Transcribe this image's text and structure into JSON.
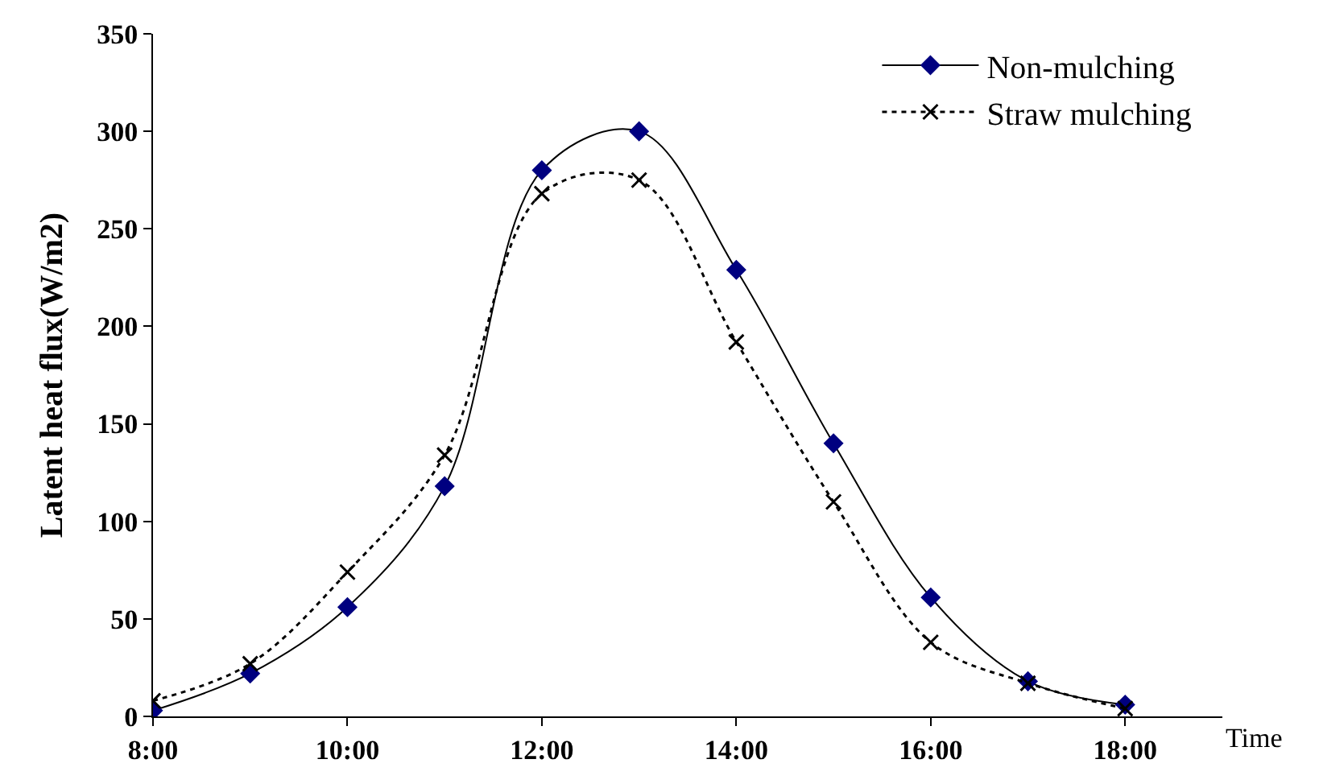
{
  "chart_data": {
    "type": "line",
    "ylabel": "Latent heat flux(W/m2)",
    "xlabel": "Time",
    "x": [
      8,
      9,
      10,
      11,
      12,
      13,
      14,
      15,
      16,
      17,
      18
    ],
    "series": [
      {
        "name": "Non-mulching",
        "color": "#000080",
        "marker": "diamond",
        "line_style": "solid",
        "values": [
          3,
          22,
          56,
          118,
          280,
          300,
          229,
          140,
          61,
          18,
          6
        ]
      },
      {
        "name": "Straw mulching",
        "color": "#000000",
        "marker": "cross",
        "line_style": "dotted",
        "values": [
          8,
          27,
          74,
          134,
          268,
          275,
          192,
          110,
          38,
          17,
          4
        ]
      }
    ],
    "xlim": [
      8,
      19
    ],
    "xticks": [
      {
        "value": 8,
        "label": "8:00"
      },
      {
        "value": 10,
        "label": "10:00"
      },
      {
        "value": 12,
        "label": "12:00"
      },
      {
        "value": 14,
        "label": "14:00"
      },
      {
        "value": 16,
        "label": "16:00"
      },
      {
        "value": 18,
        "label": "18:00"
      }
    ],
    "ylim": [
      0,
      350
    ],
    "yticks": [
      0,
      50,
      100,
      150,
      200,
      250,
      300,
      350
    ],
    "legend": "top right"
  }
}
